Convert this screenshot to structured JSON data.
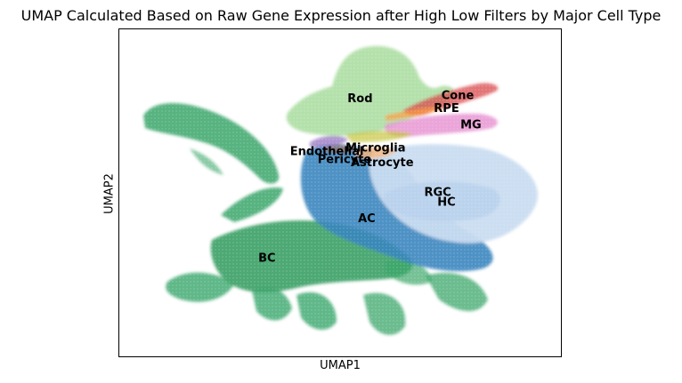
{
  "title": "UMAP Calculated Based on Raw Gene Expression after High Low Filters by Major Cell Type",
  "chart_data": {
    "type": "scatter",
    "title": "UMAP Calculated Based on Raw Gene Expression after High Low Filters by Major Cell Type",
    "xlabel": "UMAP1",
    "ylabel": "UMAP2",
    "xlim": [
      0,
      100
    ],
    "ylim": [
      0,
      100
    ],
    "grid": false,
    "legend": "none (labels placed on cluster centroids)",
    "axis_ticks": "none",
    "clusters": [
      {
        "label": "Rod",
        "color": "#a6dba0",
        "x": 54.5,
        "y": 78.5
      },
      {
        "label": "Cone",
        "color": "#d62728",
        "x": 76.5,
        "y": 79.5
      },
      {
        "label": "RPE",
        "color": "#ff7f0e",
        "x": 74,
        "y": 75.5
      },
      {
        "label": "MG",
        "color": "#e377c2",
        "x": 79.5,
        "y": 70.5
      },
      {
        "label": "Endothelial",
        "color": "#9467bd",
        "x": 47,
        "y": 62.5
      },
      {
        "label": "Microglia",
        "color": "#bcbd22",
        "x": 58,
        "y": 63.5
      },
      {
        "label": "Pericyte",
        "color": "#8c564b",
        "x": 51,
        "y": 60
      },
      {
        "label": "Astrocyte",
        "color": "#fdae6b",
        "x": 59.5,
        "y": 59
      },
      {
        "label": "RGC",
        "color": "#c6dbef",
        "x": 72,
        "y": 50
      },
      {
        "label": "HC",
        "color": "#aec7e8",
        "x": 74,
        "y": 47
      },
      {
        "label": "AC",
        "color": "#3182bd",
        "x": 56,
        "y": 42
      },
      {
        "label": "BC",
        "color": "#31a354",
        "x": 33.5,
        "y": 30
      }
    ]
  }
}
